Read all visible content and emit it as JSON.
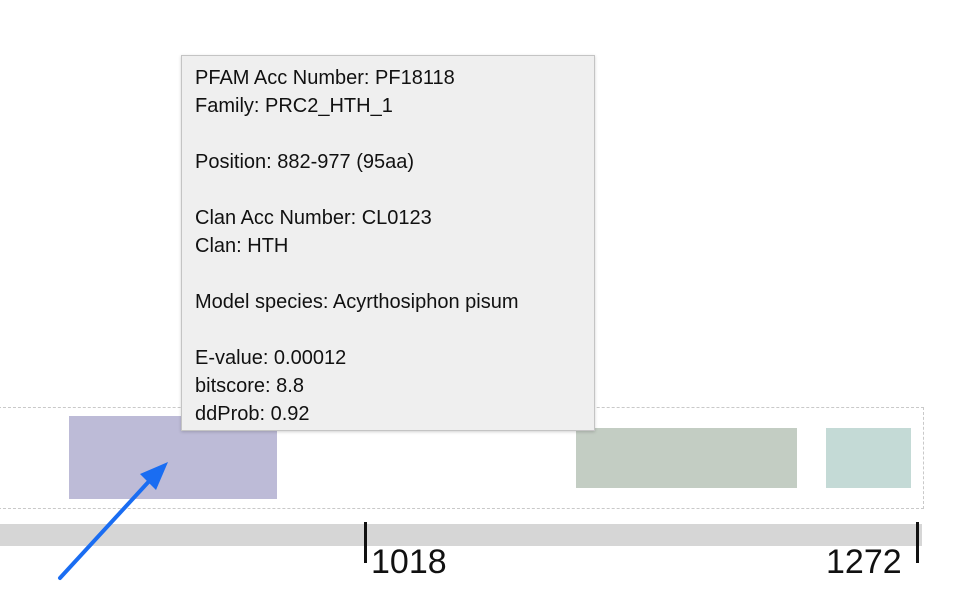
{
  "colors": {
    "domain_1": "#bdbbd7",
    "domain_2": "#c3cdc3",
    "domain_3": "#c4dad6",
    "arrow": "#1a6df2"
  },
  "ruler": {
    "tick_1_label": "1018",
    "tick_2_label": "1272"
  },
  "tooltip": {
    "pfam_acc": "PFAM Acc Number: PF18118",
    "family": "Family: PRC2_HTH_1",
    "position": "Position: 882-977 (95aa)",
    "clan_acc": "Clan Acc Number: CL0123",
    "clan": "Clan: HTH",
    "model_species": "Model species: Acyrthosiphon pisum",
    "evalue": "E-value: 0.00012",
    "bitscore": "bitscore: 8.8",
    "ddprob": "ddProb: 0.92"
  }
}
